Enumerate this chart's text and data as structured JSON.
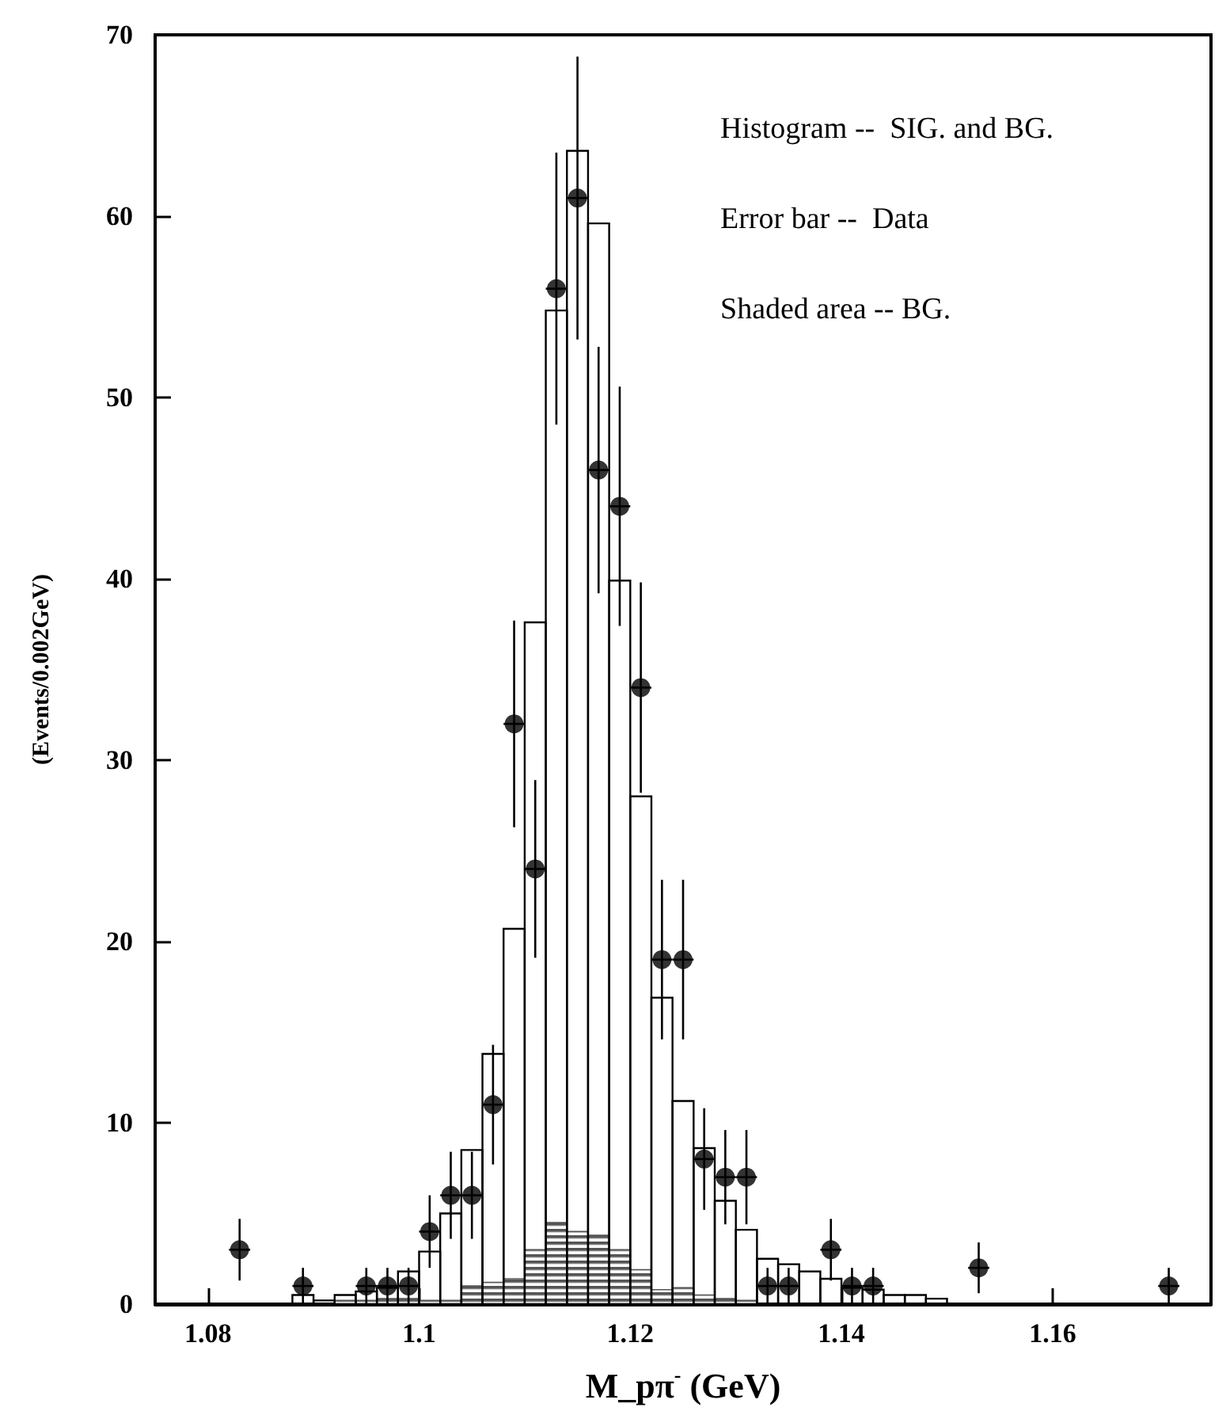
{
  "chart_data": {
    "type": "histogram",
    "xlabel": "M_pπ$^{-}$ (GeV)",
    "ylabel": "(Events/0.002GeV)",
    "annotations": [
      "Histogram --  SIG. and BG.",
      "Error bar --  Data",
      "Shaded area -- BG."
    ],
    "xlim": [
      1.075,
      1.175
    ],
    "xticks": [
      1.08,
      1.1,
      1.12,
      1.14,
      1.16
    ],
    "ylim": [
      0,
      70
    ],
    "yticks": [
      0,
      10,
      20,
      30,
      40,
      50,
      60,
      70
    ],
    "series": [
      {
        "type": "histogram",
        "color": "#000000",
        "bins": [
          1.088,
          1.09,
          1.092,
          1.094,
          1.096,
          1.098,
          1.1,
          1.102,
          1.104,
          1.106,
          1.108,
          1.11,
          1.112,
          1.114,
          1.116,
          1.118,
          1.12,
          1.122,
          1.124,
          1.126,
          1.128,
          1.13,
          1.132,
          1.134,
          1.136,
          1.138,
          1.14,
          1.142,
          1.144,
          1.146,
          1.148,
          1.15
        ],
        "values": [
          0.5,
          0.2,
          0.5,
          0.7,
          0.9,
          1.8,
          2.9,
          5.0,
          8.5,
          13.8,
          20.7,
          37.6,
          54.8,
          63.6,
          59.6,
          39.9,
          28.0,
          16.9,
          11.2,
          8.6,
          5.7,
          4.1,
          2.5,
          2.2,
          1.8,
          1.4,
          0.9,
          0.8,
          0.5,
          0.5,
          0.3
        ]
      },
      {
        "type": "histogram",
        "color": "#555555",
        "bins": [
          1.092,
          1.094,
          1.096,
          1.098,
          1.1,
          1.102,
          1.104,
          1.106,
          1.108,
          1.11,
          1.112,
          1.114,
          1.116,
          1.118,
          1.12,
          1.122,
          1.124,
          1.126,
          1.128,
          1.13,
          1.132,
          1.134
        ],
        "values": [
          0.2,
          0.2,
          0.3,
          0.3,
          0.2,
          0.2,
          1.0,
          1.2,
          1.4,
          3.0,
          4.5,
          4.0,
          3.8,
          3.0,
          1.9,
          0.8,
          0.9,
          0.5,
          0.3,
          0.2,
          null
        ]
      },
      {
        "type": "scatter",
        "color": "#000000",
        "marker": "circle",
        "x": [
          1.083,
          1.089,
          1.095,
          1.097,
          1.099,
          1.101,
          1.103,
          1.105,
          1.107,
          1.109,
          1.111,
          1.113,
          1.115,
          1.117,
          1.119,
          1.121,
          1.123,
          1.125,
          1.127,
          1.129,
          1.131,
          1.133,
          1.135,
          1.139,
          1.141,
          1.143,
          1.153,
          1.171
        ],
        "values": [
          3,
          1,
          1,
          1,
          1,
          4,
          6,
          6,
          11,
          32,
          24,
          56,
          61,
          46,
          44,
          34,
          19,
          19,
          8,
          7,
          7,
          1,
          1,
          3,
          1,
          1,
          2,
          1
        ],
        "errors": [
          1.7,
          1,
          1,
          1,
          1,
          2,
          2.4,
          2.4,
          3.3,
          5.7,
          4.9,
          7.5,
          7.8,
          6.8,
          6.6,
          5.8,
          4.4,
          4.4,
          2.8,
          2.6,
          2.6,
          1,
          1,
          1.7,
          1,
          1,
          1.4,
          1
        ],
        "xerrors": [
          0.001,
          0.001,
          0.001,
          0.001,
          0.001,
          0.001,
          0.001,
          0.001,
          0.001,
          0.001,
          0.001,
          0.001,
          0.001,
          0.001,
          0.001,
          0.001,
          0.001,
          0.001,
          0.001,
          0.001,
          0.001,
          0.001,
          0.001,
          0.001,
          0.001,
          0.001,
          0.001,
          0.001
        ]
      }
    ]
  }
}
